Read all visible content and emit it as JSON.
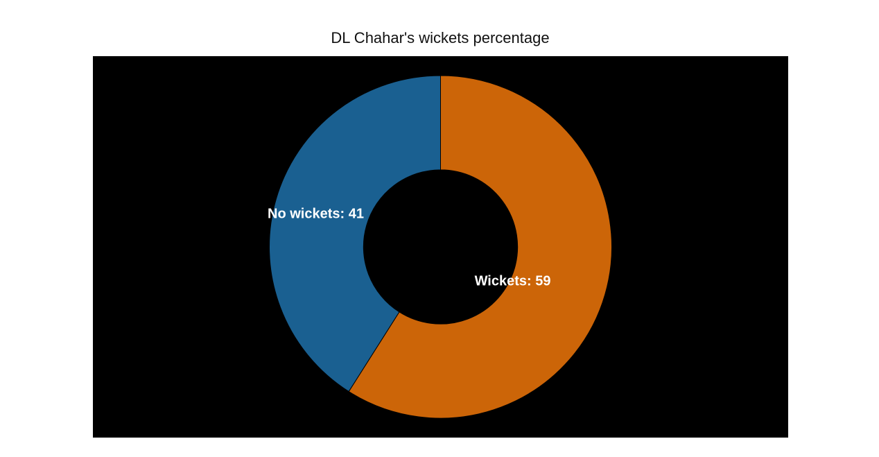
{
  "chart_data": {
    "type": "pie",
    "title": "DL Chahar's wickets percentage",
    "hole": 0.45,
    "start": "12 o'clock",
    "direction": "clockwise",
    "background": "#000000",
    "slices": [
      {
        "label": "Wickets",
        "value": 59,
        "color": "#CC6508",
        "text": "Wickets: 59"
      },
      {
        "label": "No wickets",
        "value": 41,
        "color": "#1A6091",
        "text": "No wickets: 41"
      }
    ]
  }
}
